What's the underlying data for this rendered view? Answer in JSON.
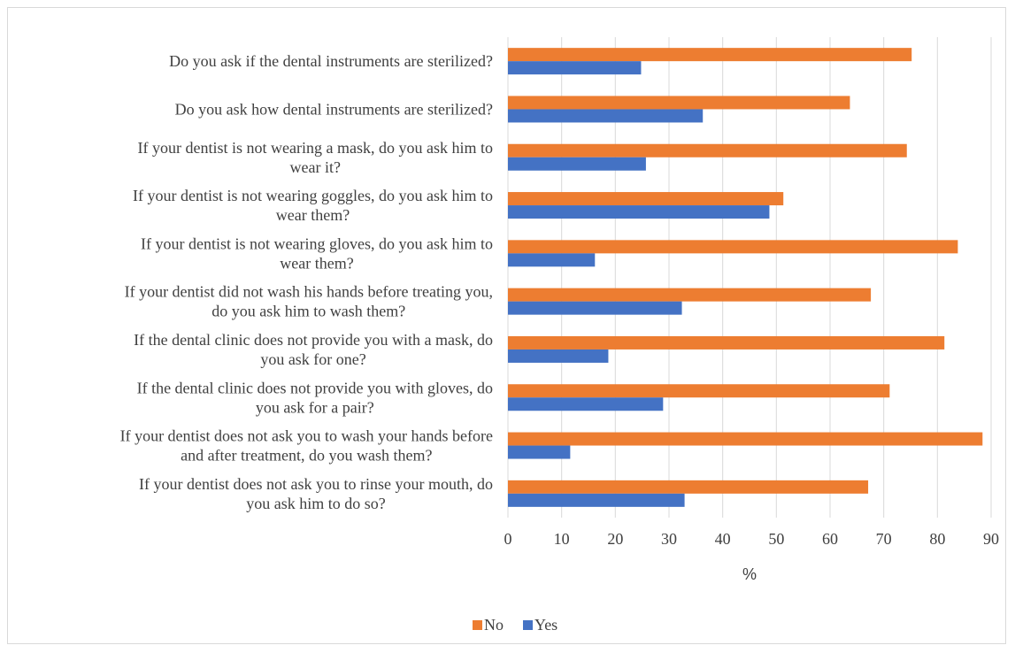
{
  "chart_data": {
    "type": "bar",
    "orientation": "horizontal",
    "categories": [
      [
        "Do you ask if the dental instruments are sterilized?"
      ],
      [
        "Do you ask how dental instruments are sterilized?"
      ],
      [
        "If your dentist is not wearing a mask, do you ask him to",
        "wear it?"
      ],
      [
        "If your dentist is not wearing goggles, do you ask him to",
        "wear them?"
      ],
      [
        "If your dentist is not wearing gloves, do you ask him to",
        "wear them?"
      ],
      [
        "If your dentist did not wash his hands before treating you,",
        "do you ask him to wash them?"
      ],
      [
        "If the dental clinic does not provide you with a mask, do",
        "you ask for one?"
      ],
      [
        "If the dental clinic does not provide you with gloves, do",
        "you ask for a pair?"
      ],
      [
        "If your dentist does not ask you to wash your hands before",
        "and after treatment, do you wash them?"
      ],
      [
        "If your dentist does not ask you to rinse your mouth, do",
        "you ask him to do so?"
      ]
    ],
    "series": [
      {
        "name": "No",
        "color": "#ED7D31",
        "values": [
          75.2,
          63.7,
          74.3,
          51.3,
          83.8,
          67.6,
          81.3,
          71.1,
          88.4,
          67.1
        ]
      },
      {
        "name": "Yes",
        "color": "#4472C4",
        "values": [
          24.8,
          36.3,
          25.7,
          48.7,
          16.2,
          32.4,
          18.7,
          28.9,
          11.6,
          32.9
        ]
      }
    ],
    "xlabel": "%",
    "xlim": [
      0,
      90
    ],
    "xticks": [
      "0",
      "10",
      "20",
      "30",
      "40",
      "50",
      "60",
      "70",
      "80",
      "90"
    ],
    "grid": true,
    "legend": "bottom"
  }
}
